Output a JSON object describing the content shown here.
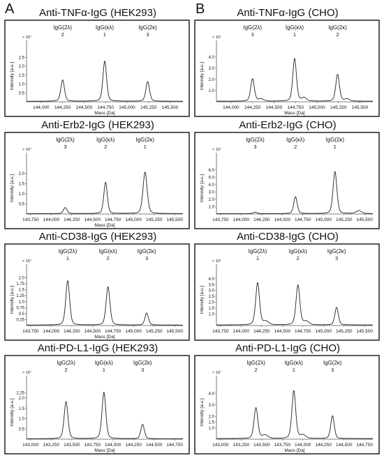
{
  "panels": [
    "A",
    "B"
  ],
  "chart_data": [
    {
      "type": "line",
      "title": "Anti-TNFα-IgG (HEK293)",
      "xlabel": "Mass [Da]",
      "ylabel": "Intensity [a.u.]",
      "y_multiplier": "× 10⁷",
      "xlim": [
        143830,
        145650
      ],
      "ylim": [
        0,
        2.9
      ],
      "xticks": [
        144000,
        144250,
        144500,
        144750,
        145000,
        145250,
        145500
      ],
      "xticklabels": [
        "144,000",
        "144,250",
        "144,500",
        "144,750",
        "145,000",
        "145,250",
        "145,500"
      ],
      "yticks": [
        0.5,
        1.0,
        1.5,
        2.0,
        2.5
      ],
      "yticklabels": [
        "0.5",
        "1.0",
        "1.5",
        "2.0",
        "2.5"
      ],
      "baseline": 0.03,
      "peaks": [
        {
          "label": "IgG(2λ)",
          "number": "2",
          "x": 144250,
          "y": 1.2,
          "w": 22
        },
        {
          "label": "IgG(κλ)",
          "number": "1",
          "x": 144740,
          "y": 2.25,
          "w": 22
        },
        {
          "label": "IgG(2κ)",
          "number": "3",
          "x": 145240,
          "y": 1.1,
          "w": 22
        }
      ],
      "minor_peaks": []
    },
    {
      "type": "line",
      "title": "Anti-TNFα-IgG (CHO)",
      "xlabel": "Mass [Da]",
      "ylabel": "Intensity [a.u.]",
      "y_multiplier": "× 10⁷",
      "xlim": [
        143830,
        145650
      ],
      "ylim": [
        0,
        4.6
      ],
      "xticks": [
        144000,
        144250,
        144500,
        144750,
        145000,
        145250,
        145500
      ],
      "xticklabels": [
        "144,000",
        "144,250",
        "144,500",
        "144,750",
        "145,000",
        "145,250",
        "145,500"
      ],
      "yticks": [
        1.0,
        2.0,
        3.0,
        4.0
      ],
      "yticklabels": [
        "1.0",
        "2.0",
        "3.0",
        "4.0"
      ],
      "baseline": 0.05,
      "peaks": [
        {
          "label": "IgG(2λ)",
          "number": "3",
          "x": 144250,
          "y": 2.0,
          "w": 22
        },
        {
          "label": "IgG(κλ)",
          "number": "1",
          "x": 144740,
          "y": 3.8,
          "w": 22
        },
        {
          "label": "IgG(2κ)",
          "number": "2",
          "x": 145240,
          "y": 2.4,
          "w": 22
        }
      ],
      "minor_peaks": [
        {
          "x": 144350,
          "y": 0.2,
          "w": 30
        },
        {
          "x": 144850,
          "y": 0.3,
          "w": 30
        },
        {
          "x": 145350,
          "y": 0.2,
          "w": 30
        }
      ]
    },
    {
      "type": "line",
      "title": "Anti-Erb2-IgG (HEK293)",
      "xlabel": "Mass [Da]",
      "ylabel": "Intensity [a.u.]",
      "y_multiplier": "× 10⁷",
      "xlim": [
        143700,
        145600
      ],
      "ylim": [
        0,
        2.55
      ],
      "xticks": [
        143750,
        144000,
        144250,
        144500,
        144750,
        145000,
        145250,
        145500
      ],
      "xticklabels": [
        "143,750",
        "144,000",
        "144,250",
        "144,500",
        "144,750",
        "145,000",
        "145,250",
        "145,500"
      ],
      "yticks": [
        0.5,
        1.0,
        1.5,
        2.0
      ],
      "yticklabels": [
        "0.5",
        "1.0",
        "1.5",
        "2.0"
      ],
      "baseline": 0.02,
      "peaks": [
        {
          "label": "IgG(2λ)",
          "number": "3",
          "x": 144170,
          "y": 0.3,
          "w": 22
        },
        {
          "label": "IgG(κλ)",
          "number": "2",
          "x": 144660,
          "y": 1.55,
          "w": 22
        },
        {
          "label": "IgG(2κ)",
          "number": "1",
          "x": 145140,
          "y": 2.05,
          "w": 26
        }
      ],
      "minor_peaks": []
    },
    {
      "type": "line",
      "title": "Anti-Erb2-IgG (CHO)",
      "xlabel": "",
      "ylabel": "Intensity [a.u.]",
      "y_multiplier": "× 10⁷",
      "xlim": [
        143700,
        145600
      ],
      "ylim": [
        0,
        7.0
      ],
      "xticks": [
        143750,
        144000,
        144250,
        144500,
        144750,
        145000,
        145250,
        145500
      ],
      "xticklabels": [
        "143,750",
        "144,000",
        "144,250",
        "144,500",
        "144,750",
        "145,000",
        "145,250",
        "145,500"
      ],
      "yticks": [
        1.0,
        2.0,
        3.0,
        4.0,
        5.0,
        6.0
      ],
      "yticklabels": [
        "1.0",
        "2.0",
        "3.0",
        "4.0",
        "5.0",
        "6.0"
      ],
      "baseline": 0.05,
      "peaks": [
        {
          "label": "IgG(2λ)",
          "number": "3",
          "x": 144170,
          "y": 0.2,
          "w": 24
        },
        {
          "label": "IgG(κλ)",
          "number": "2",
          "x": 144660,
          "y": 2.3,
          "w": 22
        },
        {
          "label": "IgG(2κ)",
          "number": "1",
          "x": 145140,
          "y": 5.7,
          "w": 24
        }
      ],
      "minor_peaks": [
        {
          "x": 145430,
          "y": 0.4,
          "w": 35
        }
      ]
    },
    {
      "type": "line",
      "title": "Anti-CD38-IgG (HEK293)",
      "xlabel": "Mass [Da]",
      "ylabel": "Intensity [a.u.]",
      "y_multiplier": "× 10⁷",
      "xlim": [
        143700,
        145600
      ],
      "ylim": [
        0,
        2.15
      ],
      "xticks": [
        143750,
        144000,
        144250,
        144500,
        144750,
        145000,
        145250,
        145500
      ],
      "xticklabels": [
        "143,750",
        "144,000",
        "144,250",
        "144,500",
        "144,750",
        "145,000",
        "145,250",
        "145,500"
      ],
      "yticks": [
        0.25,
        0.5,
        0.75,
        1.0,
        1.25,
        1.5,
        1.75,
        2.0
      ],
      "yticklabels": [
        "0.25",
        "0.5",
        "0.75",
        "1.0",
        "1.25",
        "1.5",
        "1.75",
        "2.0"
      ],
      "baseline": 0.02,
      "peaks": [
        {
          "label": "IgG(2λ)",
          "number": "1",
          "x": 144200,
          "y": 1.85,
          "w": 24
        },
        {
          "label": "IgG(κλ)",
          "number": "2",
          "x": 144690,
          "y": 1.6,
          "w": 24
        },
        {
          "label": "IgG(2κ)",
          "number": "3",
          "x": 145160,
          "y": 0.5,
          "w": 22
        }
      ],
      "minor_peaks": []
    },
    {
      "type": "line",
      "title": "Anti-CD38-IgG (CHO)",
      "xlabel": "",
      "ylabel": "Intensity [a.u.]",
      "y_multiplier": "× 10⁷",
      "xlim": [
        143700,
        145600
      ],
      "ylim": [
        0,
        4.4
      ],
      "xticks": [
        143750,
        144000,
        144250,
        144500,
        144750,
        145000,
        145250,
        145500
      ],
      "xticklabels": [
        "143,750",
        "144,000",
        "144,250",
        "144,500",
        "144,750",
        "145,000",
        "145,250",
        "145,500"
      ],
      "yticks": [
        1.0,
        1.5,
        2.0,
        2.5,
        3.0,
        3.5,
        4.0
      ],
      "yticklabels": [
        "1.0",
        "1.5",
        "2.0",
        "2.5",
        "3.0",
        "3.5",
        "4.0"
      ],
      "baseline": 0.05,
      "peaks": [
        {
          "label": "IgG(2λ)",
          "number": "1",
          "x": 144200,
          "y": 3.6,
          "w": 24
        },
        {
          "label": "IgG(κλ)",
          "number": "2",
          "x": 144690,
          "y": 3.4,
          "w": 24
        },
        {
          "label": "IgG(2κ)",
          "number": "3",
          "x": 145160,
          "y": 1.5,
          "w": 22
        }
      ],
      "minor_peaks": [
        {
          "x": 144300,
          "y": 0.3,
          "w": 35
        },
        {
          "x": 144790,
          "y": 0.3,
          "w": 35
        }
      ]
    },
    {
      "type": "line",
      "title": "Anti-PD-L1-IgG (HEK293)",
      "xlabel": "Mass [Da]",
      "ylabel": "Intensity [a.u.]",
      "y_multiplier": "× 10⁷",
      "xlim": [
        142950,
        144850
      ],
      "ylim": [
        0,
        2.6
      ],
      "xticks": [
        143000,
        143250,
        143500,
        143750,
        144000,
        144250,
        144500,
        144750
      ],
      "xticklabels": [
        "143,000",
        "143,250",
        "143,500",
        "143,750",
        "144,000",
        "144,250",
        "144,500",
        "144,750"
      ],
      "yticks": [
        0.5,
        1.0,
        1.5,
        2.0,
        2.25
      ],
      "yticklabels": [
        "0.5",
        "1.0",
        "1.5",
        "2.0",
        "2.25"
      ],
      "baseline": 0.02,
      "peaks": [
        {
          "label": "IgG(2λ)",
          "number": "2",
          "x": 143430,
          "y": 1.8,
          "w": 24
        },
        {
          "label": "IgG(κλ)",
          "number": "1",
          "x": 143890,
          "y": 2.25,
          "w": 24
        },
        {
          "label": "IgG(2κ)",
          "number": "3",
          "x": 144360,
          "y": 0.7,
          "w": 22
        }
      ],
      "minor_peaks": []
    },
    {
      "type": "line",
      "title": "Anti-PD-L1-IgG (CHO)",
      "xlabel": "Mass [Da]",
      "ylabel": "Intensity [a.u.]",
      "y_multiplier": "× 10⁷",
      "xlim": [
        142950,
        144850
      ],
      "ylim": [
        0,
        4.7
      ],
      "xticks": [
        143000,
        143250,
        143500,
        143750,
        144000,
        144250,
        144500,
        144750
      ],
      "xticklabels": [
        "143,000",
        "143,250",
        "143,500",
        "143,750",
        "144,000",
        "144,250",
        "144,500",
        "144,750"
      ],
      "yticks": [
        1.0,
        1.5,
        2.0,
        3.0,
        4.0
      ],
      "yticklabels": [
        "1.0",
        "1.5",
        "2.0",
        "3.0",
        "4.0"
      ],
      "baseline": 0.05,
      "peaks": [
        {
          "label": "IgG(2λ)",
          "number": "2",
          "x": 143430,
          "y": 2.7,
          "w": 24
        },
        {
          "label": "IgG(κλ)",
          "number": "1",
          "x": 143890,
          "y": 4.2,
          "w": 24
        },
        {
          "label": "IgG(2κ)",
          "number": "3",
          "x": 144360,
          "y": 2.0,
          "w": 22
        }
      ],
      "minor_peaks": [
        {
          "x": 143540,
          "y": 0.3,
          "w": 35
        },
        {
          "x": 144000,
          "y": 0.3,
          "w": 35
        }
      ]
    }
  ]
}
